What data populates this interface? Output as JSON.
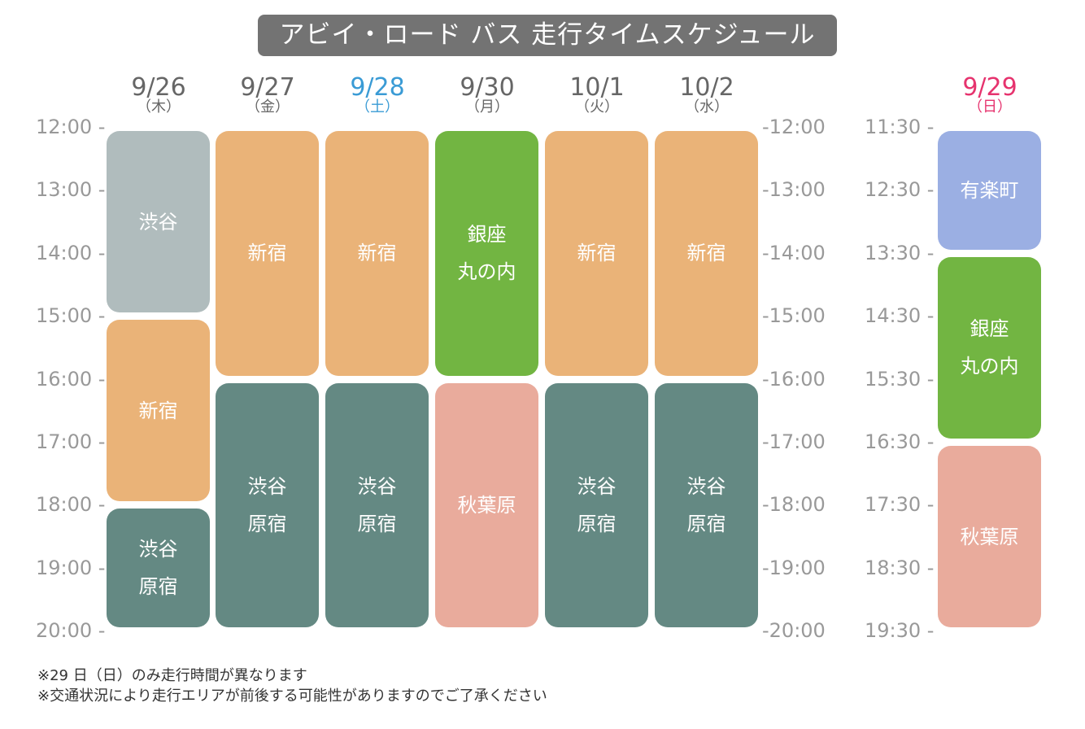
{
  "title": "アビイ・ロード バス 走行タイムスケジュール",
  "colors": {
    "gray": "#b0bcbd",
    "orange": "#eab378",
    "green": "#72b542",
    "teal": "#648983",
    "pink": "#e9ab9c",
    "blue": "#9bafe3",
    "saturday_text": "#3a9bd5",
    "sunday_text": "#e6336e"
  },
  "weekday_times": [
    "12:00",
    "13:00",
    "14:00",
    "15:00",
    "16:00",
    "17:00",
    "18:00",
    "19:00",
    "20:00"
  ],
  "sunday_times": [
    "11:30",
    "12:30",
    "13:30",
    "14:30",
    "15:30",
    "16:30",
    "17:30",
    "18:30",
    "19:30"
  ],
  "days": [
    {
      "date": "9/26",
      "weekday": "（木）"
    },
    {
      "date": "9/27",
      "weekday": "（金）"
    },
    {
      "date": "9/28",
      "weekday": "（土）"
    },
    {
      "date": "9/30",
      "weekday": "（月）"
    },
    {
      "date": "10/1",
      "weekday": "（火）"
    },
    {
      "date": "10/2",
      "weekday": "（水）"
    }
  ],
  "sunday": {
    "date": "9/29",
    "weekday": "（日）"
  },
  "schedule": [
    {
      "day": "9/26",
      "area": "渋谷",
      "start": "12:00",
      "end": "15:00",
      "color": "gray"
    },
    {
      "day": "9/26",
      "area": "新宿",
      "start": "15:00",
      "end": "18:00",
      "color": "orange"
    },
    {
      "day": "9/26",
      "area": "渋谷\n原宿",
      "start": "18:00",
      "end": "20:00",
      "color": "teal"
    },
    {
      "day": "9/27",
      "area": "新宿",
      "start": "12:00",
      "end": "16:00",
      "color": "orange"
    },
    {
      "day": "9/27",
      "area": "渋谷\n原宿",
      "start": "16:00",
      "end": "20:00",
      "color": "teal"
    },
    {
      "day": "9/28",
      "area": "新宿",
      "start": "12:00",
      "end": "16:00",
      "color": "orange"
    },
    {
      "day": "9/28",
      "area": "渋谷\n原宿",
      "start": "16:00",
      "end": "20:00",
      "color": "teal"
    },
    {
      "day": "9/30",
      "area": "銀座\n丸の内",
      "start": "12:00",
      "end": "16:00",
      "color": "green"
    },
    {
      "day": "9/30",
      "area": "秋葉原",
      "start": "16:00",
      "end": "20:00",
      "color": "pink"
    },
    {
      "day": "10/1",
      "area": "新宿",
      "start": "12:00",
      "end": "16:00",
      "color": "orange"
    },
    {
      "day": "10/1",
      "area": "渋谷\n原宿",
      "start": "16:00",
      "end": "20:00",
      "color": "teal"
    },
    {
      "day": "10/2",
      "area": "新宿",
      "start": "12:00",
      "end": "16:00",
      "color": "orange"
    },
    {
      "day": "10/2",
      "area": "渋谷\n原宿",
      "start": "16:00",
      "end": "20:00",
      "color": "teal"
    },
    {
      "day": "9/29",
      "area": "有楽町",
      "start": "11:30",
      "end": "13:30",
      "color": "blue"
    },
    {
      "day": "9/29",
      "area": "銀座\n丸の内",
      "start": "13:30",
      "end": "16:30",
      "color": "green"
    },
    {
      "day": "9/29",
      "area": "秋葉原",
      "start": "16:30",
      "end": "19:30",
      "color": "pink"
    }
  ],
  "notes": [
    "※29 日（日）のみ走行時間が異なります",
    "※交通状況により走行エリアが前後する可能性がありますのでご了承ください"
  ]
}
